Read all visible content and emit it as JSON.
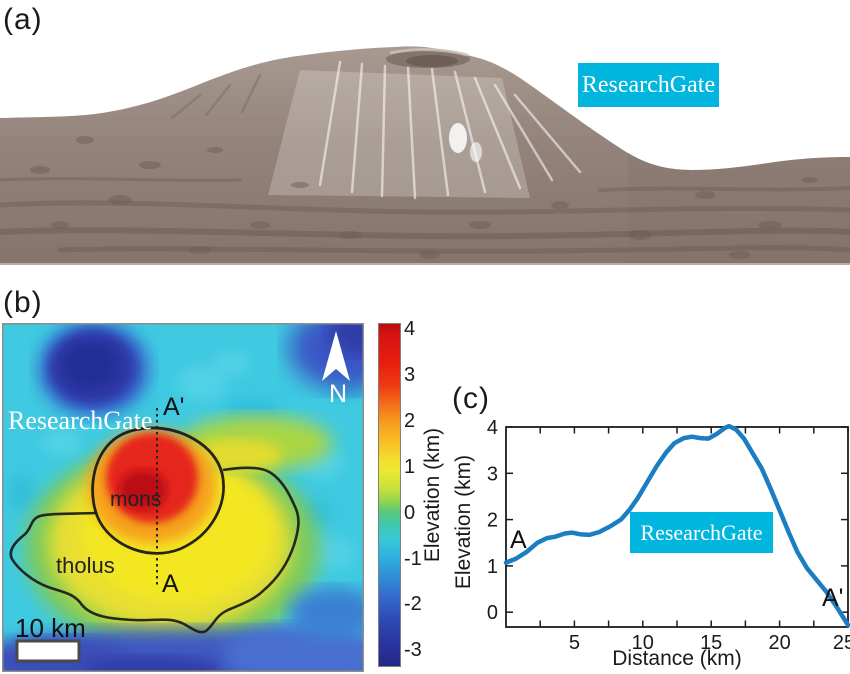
{
  "watermark": {
    "text": "ResearchGate",
    "bg_color": "#00b5de",
    "text_color": "#ffffff"
  },
  "panel_a": {
    "label": "(a)",
    "description_colors": {
      "terrain": "#96867d",
      "sky": "#ffffff"
    }
  },
  "panel_b": {
    "label": "(b)",
    "north_label": "N",
    "scale_bar_label": "10 km",
    "feature_labels": {
      "mons": "mons",
      "tholus": "tholus",
      "profile_start": "A",
      "profile_end": "A'"
    },
    "colorbar": {
      "title": "Elevation (km)",
      "tick_values": [
        4,
        3,
        2,
        1,
        0,
        -1,
        -2,
        -3
      ]
    }
  },
  "panel_c": {
    "label": "(c)",
    "profile_start": "A",
    "profile_end": "A'",
    "xlabel": "Distance (km)",
    "ylabel": "Elevation (km)"
  },
  "chart_data": [
    {
      "type": "heatmap",
      "panel": "b",
      "colormap": "jet",
      "value_label": "Elevation (km)",
      "value_range_km": [
        -3.4,
        4.2
      ],
      "colorbar_ticks": [
        4,
        3,
        2,
        1,
        0,
        -1,
        -2,
        -3
      ],
      "scale_bar_km": 10,
      "north_arrow": true,
      "features": [
        {
          "name": "mons",
          "outline": "black",
          "approx_peak_elevation_km": 4
        },
        {
          "name": "tholus",
          "outline": "black",
          "approx_elevation_km": 1
        },
        {
          "name": "crater-northwest",
          "approx_elevation_km": -3
        },
        {
          "name": "background-plains",
          "approx_elevation_km": -0.5
        },
        {
          "name": "bottom-lowlands",
          "approx_elevation_km": -2
        }
      ],
      "profile_line": {
        "from": "A",
        "to": "A'",
        "style": "dotted"
      }
    },
    {
      "type": "line",
      "panel": "c",
      "xlabel": "Distance (km)",
      "ylabel": "Elevation (km)",
      "xlim": [
        0,
        25
      ],
      "ylim": [
        -0.32,
        4
      ],
      "xticks_all": [
        2.5,
        5,
        7.5,
        10,
        12.5,
        15,
        17.5,
        20,
        22.5,
        25
      ],
      "xticks_labeled": [
        5,
        10,
        15,
        20,
        25
      ],
      "yticks": [
        0,
        1,
        2,
        3,
        4
      ],
      "line_color": "#1b7ec2",
      "line_width": 4.5,
      "annotations": [
        {
          "text": "A",
          "x": 0.8,
          "y": 1.62
        },
        {
          "text": "A'",
          "x": 23.6,
          "y": 0.45
        }
      ],
      "x": [
        0,
        0.7,
        1.5,
        2.3,
        3,
        3.6,
        4.3,
        4.8,
        5.5,
        6.1,
        6.8,
        7.6,
        8.4,
        9,
        9.6,
        10.3,
        11,
        11.7,
        12.3,
        13,
        13.6,
        14.2,
        14.8,
        15.4,
        16,
        16.3,
        16.8,
        17.4,
        18,
        18.7,
        19.3,
        20,
        20.7,
        21.3,
        22,
        22.7,
        23.4,
        24.2,
        25
      ],
      "y": [
        1.07,
        1.15,
        1.3,
        1.5,
        1.6,
        1.63,
        1.7,
        1.72,
        1.68,
        1.67,
        1.73,
        1.85,
        2.0,
        2.2,
        2.45,
        2.8,
        3.15,
        3.45,
        3.65,
        3.76,
        3.79,
        3.76,
        3.75,
        3.85,
        3.98,
        4.02,
        3.95,
        3.75,
        3.45,
        3.1,
        2.7,
        2.2,
        1.7,
        1.3,
        0.95,
        0.7,
        0.45,
        0.1,
        -0.28
      ]
    }
  ]
}
